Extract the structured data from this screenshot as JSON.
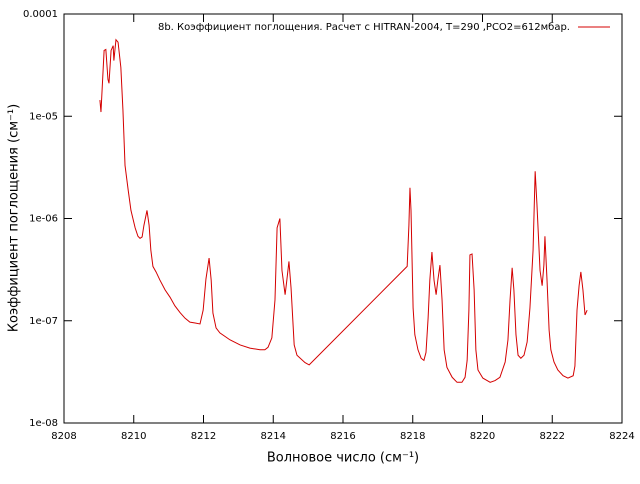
{
  "chart_data": {
    "type": "line",
    "xlabel": "Волновое число (см⁻¹)",
    "ylabel": "Коэффициент поглощения (см⁻¹)",
    "ylog": true,
    "grid": false,
    "legend": "top-right",
    "xlim": [
      8208,
      8224
    ],
    "xticks": [
      8208,
      8210,
      8212,
      8214,
      8216,
      8218,
      8220,
      8222,
      8224
    ],
    "ylim": [
      1e-08,
      0.0001
    ],
    "yticks": [
      {
        "value": 1e-08,
        "label": "1e-08"
      },
      {
        "value": 1e-07,
        "label": "1e-07"
      },
      {
        "value": 1e-06,
        "label": "1e-06"
      },
      {
        "value": 1e-05,
        "label": "1e-05"
      },
      {
        "value": 0.0001,
        "label": "0.0001"
      }
    ],
    "x": [
      8209.03,
      8209.06,
      8209.15,
      8209.2,
      8209.26,
      8209.29,
      8209.35,
      8209.41,
      8209.43,
      8209.49,
      8209.55,
      8209.63,
      8209.69,
      8209.75,
      8209.84,
      8209.92,
      8210.04,
      8210.12,
      8210.18,
      8210.24,
      8210.29,
      8210.38,
      8210.44,
      8210.49,
      8210.55,
      8210.64,
      8210.75,
      8210.9,
      8211.04,
      8211.18,
      8211.33,
      8211.47,
      8211.61,
      8211.76,
      8211.9,
      8211.99,
      8212.07,
      8212.16,
      8212.22,
      8212.27,
      8212.36,
      8212.47,
      8212.76,
      8213.05,
      8213.33,
      8213.62,
      8213.76,
      8213.85,
      8213.96,
      8214.05,
      8214.11,
      8214.19,
      8214.25,
      8214.34,
      8214.39,
      8214.45,
      8214.51,
      8214.6,
      8214.68,
      8214.91,
      8215.03,
      8217.84,
      8217.89,
      8217.92,
      8217.95,
      8218.01,
      8218.06,
      8218.15,
      8218.24,
      8218.32,
      8218.38,
      8218.44,
      8218.49,
      8218.55,
      8218.61,
      8218.67,
      8218.72,
      8218.78,
      8218.84,
      8218.9,
      8218.98,
      8219.13,
      8219.27,
      8219.41,
      8219.5,
      8219.56,
      8219.61,
      8219.64,
      8219.7,
      8219.76,
      8219.81,
      8219.87,
      8220.01,
      8220.22,
      8220.36,
      8220.5,
      8220.65,
      8220.73,
      8220.79,
      8220.85,
      8220.9,
      8220.96,
      8221.02,
      8221.1,
      8221.19,
      8221.28,
      8221.36,
      8221.45,
      8221.51,
      8221.56,
      8221.65,
      8221.71,
      8221.76,
      8221.79,
      8221.85,
      8221.91,
      8221.96,
      8222.05,
      8222.16,
      8222.31,
      8222.45,
      8222.6,
      8222.65,
      8222.71,
      8222.77,
      8222.82,
      8222.88,
      8222.94,
      8223.0
    ],
    "series": [
      {
        "name": "8b. Коэффициент поглощения. Расчет с HITRAN-2004, T=290 ,PCO2=612мбар.",
        "color": "#d40000",
        "values": [
          1.44e-05,
          1.1e-05,
          4.4e-05,
          4.5e-05,
          2.3e-05,
          2.1e-05,
          4.4e-05,
          4.9e-05,
          3.5e-05,
          5.6e-05,
          5.3e-05,
          3e-05,
          1.15e-05,
          3.3e-06,
          1.9e-06,
          1.2e-06,
          8.1e-07,
          6.7e-07,
          6.4e-07,
          6.6e-07,
          8.5e-07,
          1.2e-06,
          8.6e-07,
          4.9e-07,
          3.4e-07,
          3e-07,
          2.5e-07,
          2e-07,
          1.7e-07,
          1.4e-07,
          1.2e-07,
          1.06e-07,
          9.7e-08,
          9.5e-08,
          9.3e-08,
          1.27e-07,
          2.56e-07,
          4.1e-07,
          2.5e-07,
          1.19e-07,
          8.5e-08,
          7.6e-08,
          6.5e-08,
          5.8e-08,
          5.4e-08,
          5.2e-08,
          5.2e-08,
          5.5e-08,
          6.8e-08,
          1.6e-07,
          8.1e-07,
          1e-06,
          3.1e-07,
          1.8e-07,
          2.5e-07,
          3.8e-07,
          2.1e-07,
          5.8e-08,
          4.6e-08,
          3.9e-08,
          3.7e-08,
          3.4e-07,
          8.6e-07,
          2e-06,
          1.2e-06,
          1.33e-07,
          7.3e-08,
          5.2e-08,
          4.3e-08,
          4.1e-08,
          4.9e-08,
          1.06e-07,
          2.5e-07,
          4.7e-07,
          2.5e-07,
          1.8e-07,
          2.5e-07,
          3.5e-07,
          1.6e-07,
          5.2e-08,
          3.5e-08,
          2.8e-08,
          2.5e-08,
          2.5e-08,
          2.8e-08,
          4.1e-08,
          1.27e-07,
          4.4e-07,
          4.5e-07,
          2e-07,
          5.2e-08,
          3.3e-08,
          2.75e-08,
          2.5e-08,
          2.6e-08,
          2.8e-08,
          3.95e-08,
          6.5e-08,
          1.6e-07,
          3.3e-07,
          2e-07,
          7.3e-08,
          4.6e-08,
          4.3e-08,
          4.6e-08,
          6.2e-08,
          1.33e-07,
          4.9e-07,
          2.9e-06,
          1.4e-06,
          3.1e-07,
          2.2e-07,
          3.5e-07,
          6.7e-07,
          2.5e-07,
          8.1e-08,
          5.2e-08,
          3.95e-08,
          3.3e-08,
          2.9e-08,
          2.75e-08,
          2.9e-08,
          3.6e-08,
          1.27e-07,
          2.2e-07,
          3e-07,
          2e-07,
          1.14e-07,
          1.27e-07
        ]
      }
    ]
  }
}
